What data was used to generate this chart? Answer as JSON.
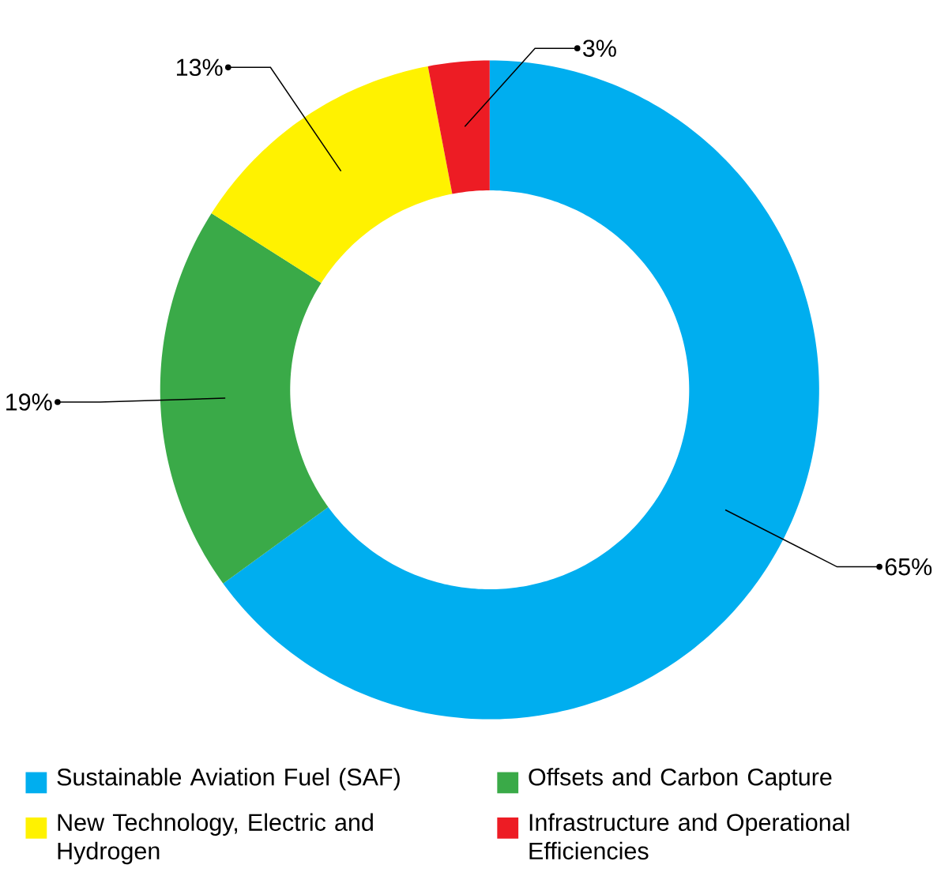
{
  "chart_data": {
    "type": "donut",
    "categories": [
      "Sustainable Aviation Fuel (SAF)",
      "Offsets and Carbon Capture",
      "New Technology, Electric and Hydrogen",
      "Infrastructure and Operational Efficiencies"
    ],
    "values": [
      65,
      19,
      13,
      3
    ],
    "value_labels": [
      "65%",
      "19%",
      "13%",
      "3%"
    ],
    "colors": [
      "#00aeef",
      "#3aaa48",
      "#fff200",
      "#ed1c24"
    ],
    "legend": "bottom"
  }
}
